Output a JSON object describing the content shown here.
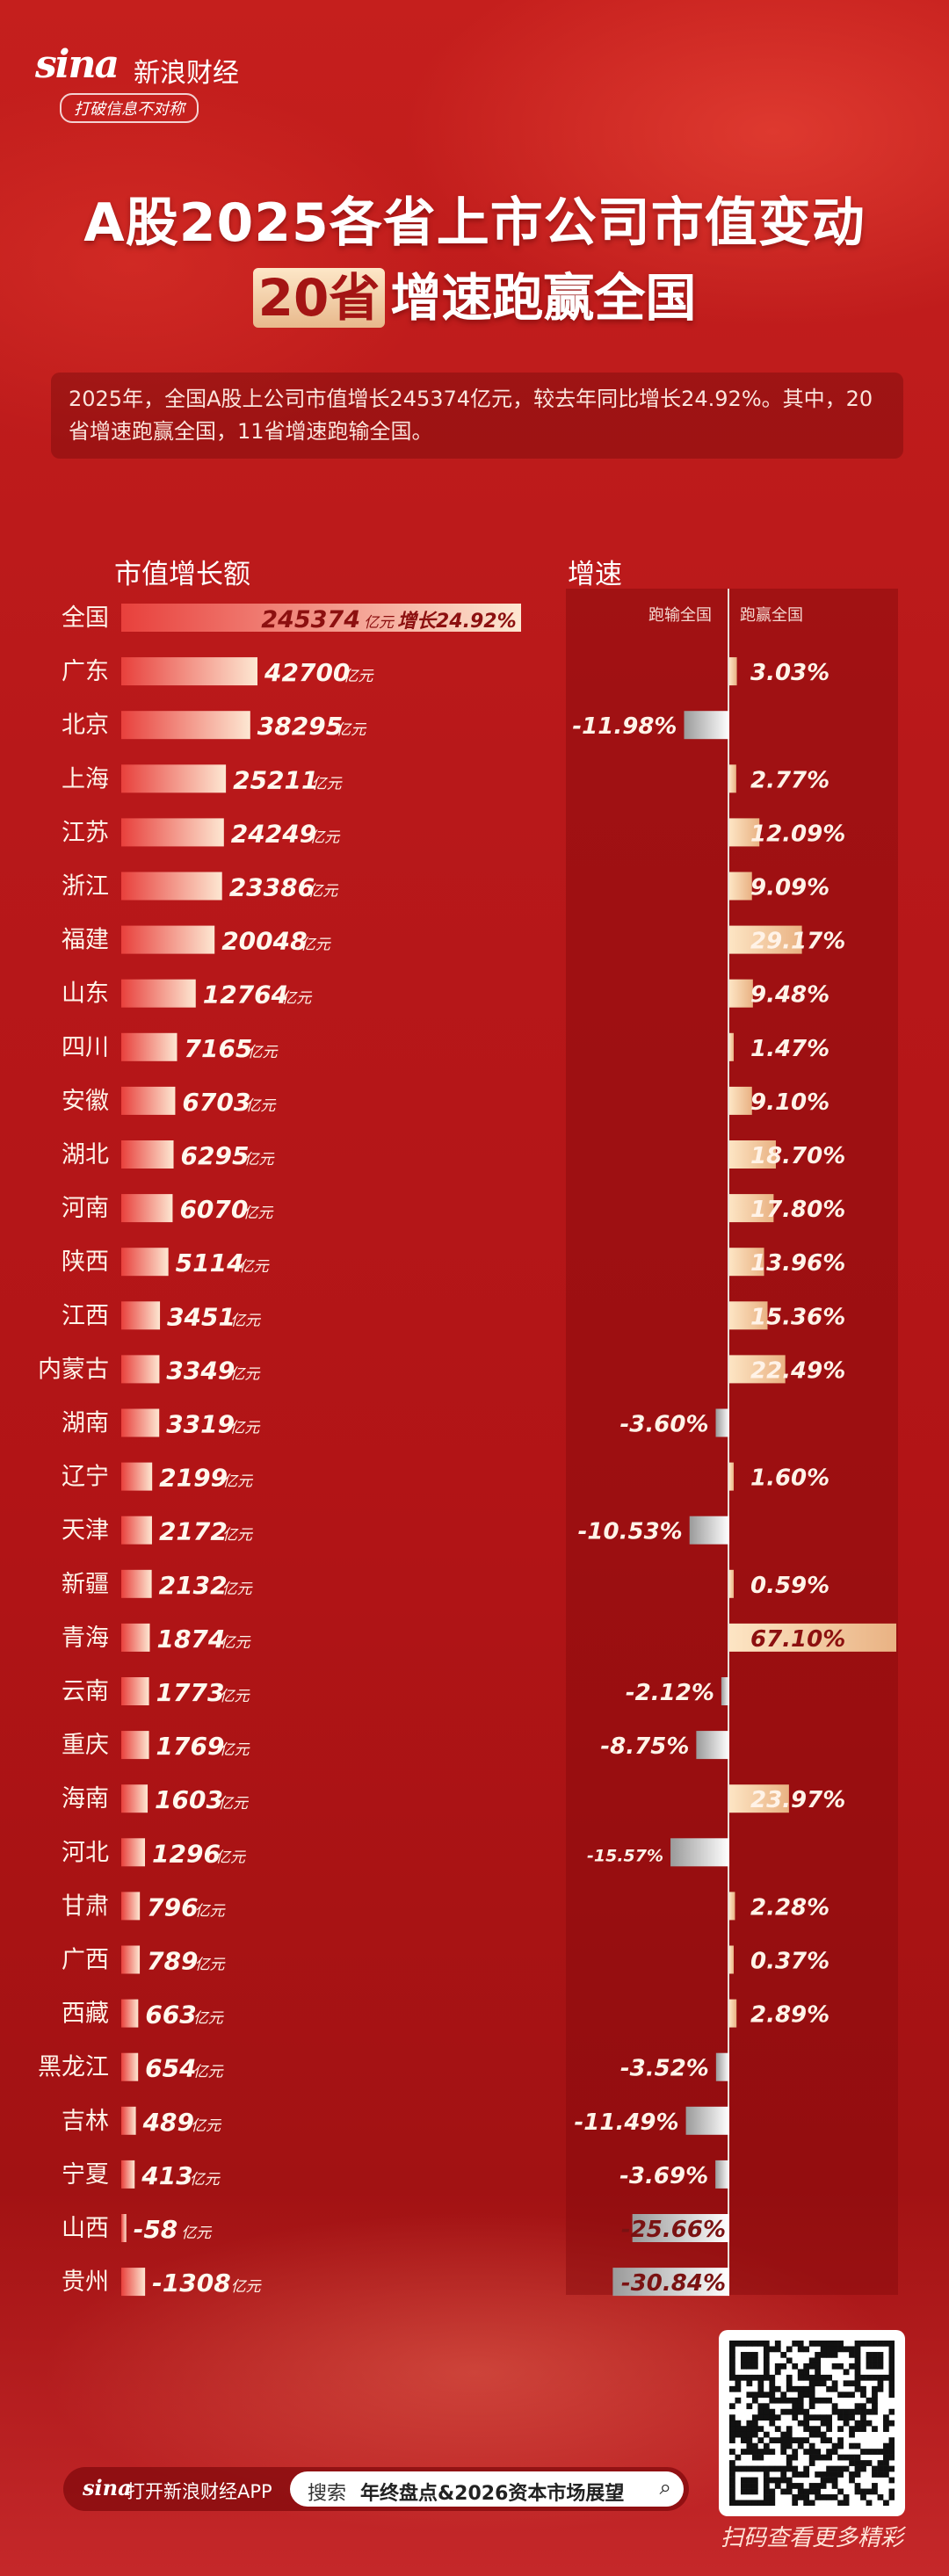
{
  "brand": {
    "logo_mark": "sina",
    "name": "新浪财经",
    "slogan": "打破信息不对称"
  },
  "title": {
    "line1": "A股2025各省上市公司市值变动",
    "highlight": "20省",
    "line2_rest": "增速跑赢全国"
  },
  "intro": "2025年，全国A股上公司市值增长245374亿元，较去年同比增长24.92%。其中，20省增速跑赢全国，11省增速跑输全国。",
  "headers": {
    "left": "市值增长额",
    "right": "增速",
    "lose": "跑输全国",
    "win": "跑赢全国"
  },
  "unit": "亿元",
  "colors": {
    "bg": "#b8181a",
    "value_bar_start": "#e8403c",
    "value_bar_end": "#fde7d2",
    "win_bar": "#efc49a",
    "lose_bar": "#d8d8d8",
    "label_text": "#fff3e8"
  },
  "chart_data": {
    "type": "bar",
    "categories": [
      "全国",
      "广东",
      "北京",
      "上海",
      "江苏",
      "浙江",
      "福建",
      "山东",
      "四川",
      "安徽",
      "湖北",
      "河南",
      "陕西",
      "江西",
      "内蒙古",
      "湖南",
      "辽宁",
      "天津",
      "新疆",
      "青海",
      "云南",
      "重庆",
      "海南",
      "河北",
      "甘肃",
      "广西",
      "西藏",
      "黑龙江",
      "吉林",
      "宁夏",
      "山西",
      "贵州"
    ],
    "series": [
      {
        "name": "市值增长额",
        "unit": "亿元",
        "values": [
          245374,
          42700,
          38295,
          25211,
          24249,
          23386,
          20048,
          12764,
          7165,
          6703,
          6295,
          6070,
          5114,
          3451,
          3349,
          3319,
          2199,
          2172,
          2132,
          1874,
          1773,
          1769,
          1603,
          1296,
          796,
          789,
          663,
          654,
          489,
          413,
          -58,
          -1308
        ]
      },
      {
        "name": "增速",
        "unit": "%",
        "values": [
          24.92,
          3.03,
          -11.98,
          2.77,
          12.09,
          9.09,
          29.17,
          9.48,
          1.47,
          9.1,
          18.7,
          17.8,
          13.96,
          15.36,
          22.49,
          -3.6,
          1.6,
          -10.53,
          0.59,
          67.1,
          -2.12,
          -8.75,
          23.97,
          -15.57,
          2.28,
          0.37,
          2.89,
          -3.52,
          -11.49,
          -3.69,
          -25.66,
          -30.84
        ]
      }
    ],
    "value_labels": [
      "245374",
      "42700",
      "38295",
      "25211",
      "24249",
      "23386",
      "20048",
      "12764",
      "7165",
      "6703",
      "6295",
      "6070",
      "5114",
      "3451",
      "3349",
      "3319",
      "2199",
      "2172",
      "2132",
      "1874",
      "1773",
      "1769",
      "1603",
      "1296",
      "796",
      "789",
      "663",
      "654",
      "489",
      "413",
      "-58",
      "-1308"
    ],
    "growth_labels": [
      "3.03%",
      "-11.98%",
      "2.77%",
      "12.09%",
      "9.09%",
      "29.17%",
      "9.48%",
      "1.47%",
      "9.10%",
      "18.70%",
      "17.80%",
      "13.96%",
      "15.36%",
      "22.49%",
      "-3.60%",
      "1.60%",
      "-10.53%",
      "0.59%",
      "67.10%",
      "-2.12%",
      "-8.75%",
      "23.97%",
      "-15.57%",
      "2.28%",
      "0.37%",
      "2.89%",
      "-3.52%",
      "-11.49%",
      "-3.69%",
      "-25.66%",
      "-30.84%"
    ],
    "national_label": "增长24.92%"
  },
  "qr": {
    "caption": "扫码查看更多精彩"
  },
  "app": {
    "logo": "sina",
    "open": "打开新浪财经APP",
    "search_label": "搜索",
    "search_keyword": "年终盘点&2026资本市场展望",
    "search_icon": "magnifier-icon"
  }
}
